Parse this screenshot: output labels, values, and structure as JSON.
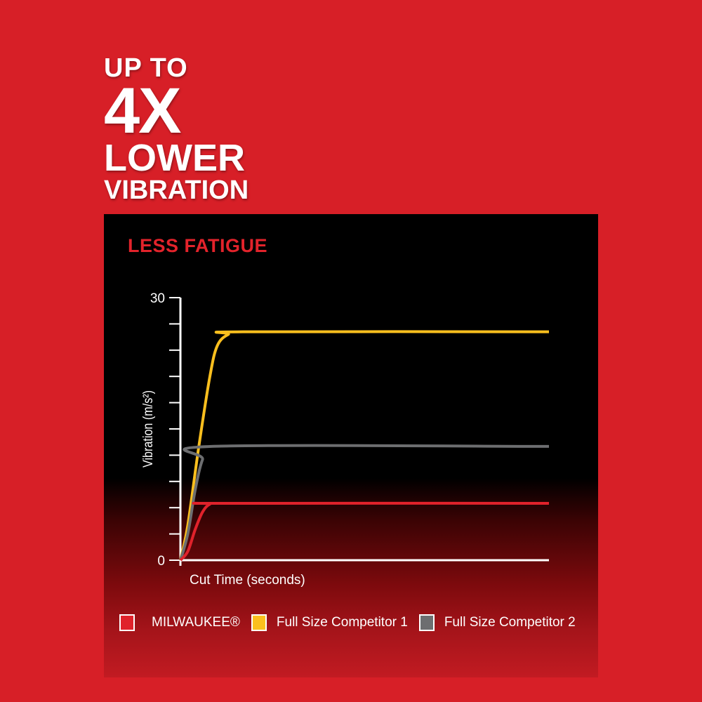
{
  "headline": {
    "line1": "UP TO",
    "line2": "4X",
    "line3": "LOWER",
    "line4": "VIBRATION"
  },
  "colors": {
    "background": "#d71f27",
    "milwaukee": "#e0222b",
    "competitor1": "#fbbf1e",
    "competitor2": "#6d6e70"
  },
  "chart_data": {
    "type": "line",
    "title": "LESS FATIGUE",
    "xlabel": "Cut Time (seconds)",
    "ylabel": "Vibration (m/s²)",
    "ylim": [
      0,
      30
    ],
    "xlim": [
      0,
      100
    ],
    "yticks": [
      0,
      3,
      6,
      9,
      12,
      15,
      18,
      21,
      24,
      27,
      30
    ],
    "ytick_labels": [
      "0",
      "30"
    ],
    "grid": false,
    "legend_position": "bottom",
    "series": [
      {
        "name": "MILWAUKEE®",
        "color": "#e0222b",
        "x": [
          0,
          2,
          4,
          6,
          8,
          11,
          100
        ],
        "y": [
          0,
          1,
          3.5,
          5.5,
          6.4,
          6.5,
          6.5
        ]
      },
      {
        "name": "Full Size Competitor 1",
        "color": "#fbbf1e",
        "x": [
          0,
          2,
          5,
          8,
          10,
          13,
          17,
          100
        ],
        "y": [
          0,
          4,
          13,
          21,
          24.5,
          25.8,
          26.1,
          26.1
        ]
      },
      {
        "name": "Full Size Competitor 2",
        "color": "#6d6e70",
        "x": [
          0,
          2,
          4,
          6,
          8.5,
          100
        ],
        "y": [
          0,
          3,
          8,
          11.5,
          13,
          13
        ]
      }
    ]
  }
}
